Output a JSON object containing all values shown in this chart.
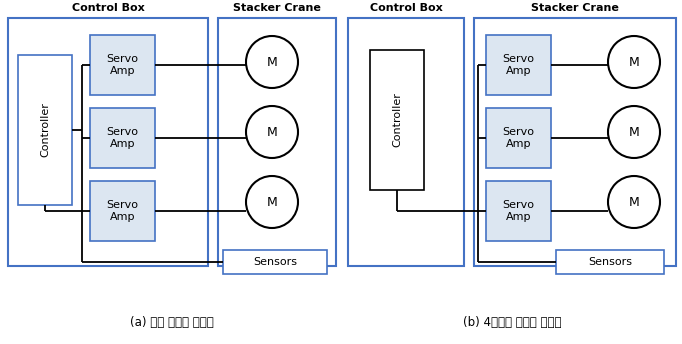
{
  "fig_width": 6.82,
  "fig_height": 3.44,
  "background_color": "#ffffff",
  "outer_box_color": "#4472c4",
  "servo_box_fill": "#dce6f1",
  "servo_box_edge": "#4472c4",
  "controller_box_edge": "#4472c4",
  "motor_edge": "#000000",
  "sensors_box_edge": "#4472c4",
  "line_color": "#000000",
  "caption_a": "(a) 기존 제어기 구성도",
  "caption_b": "(b) 4차년도 제어기 구성도",
  "label_control_box": "Control Box",
  "label_stacker_crane": "Stacker Crane",
  "label_controller": "Controller",
  "label_servo_amp": "Servo\nAmp",
  "label_motor": "M",
  "label_sensors": "Sensors"
}
